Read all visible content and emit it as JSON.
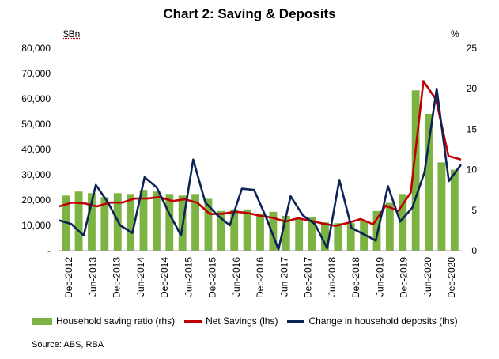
{
  "title": "Chart 2: Saving & Deposits",
  "source": "Source: ABS, RBA",
  "colors": {
    "saving_ratio": "#7cb342",
    "net_savings": "#c00000",
    "deposits": "#0d2356"
  },
  "chart_data": {
    "type": "bar",
    "title": "Chart 2: Saving & Deposits",
    "left_unit": "$Bn",
    "right_unit": "%",
    "ylim_left": [
      0,
      80000
    ],
    "ylim_right": [
      0,
      25
    ],
    "left_tick_labels": [
      "-",
      "10,000",
      "20,000",
      "30,000",
      "40,000",
      "50,000",
      "60,000",
      "70,000",
      "80,000"
    ],
    "right_tick_labels": [
      "0",
      "5",
      "10",
      "15",
      "20",
      "25"
    ],
    "x_tick_labels": [
      "Dec-2012",
      "Jun-2013",
      "Dec-2013",
      "Jun-2014",
      "Dec-2014",
      "Jun-2015",
      "Dec-2015",
      "Jun-2016",
      "Dec-2016",
      "Jun-2017",
      "Dec-2017",
      "Jun-2018",
      "Dec-2018",
      "Jun-2019",
      "Dec-2019",
      "Jun-2020",
      "Dec-2020"
    ],
    "legend_position": "bottom",
    "series": [
      {
        "name": "Household saving ratio (rhs)",
        "type": "bar",
        "axis": "right",
        "values": [
          6.8,
          7.3,
          7.1,
          6.6,
          7.1,
          7.0,
          7.5,
          7.3,
          7.0,
          6.8,
          7.0,
          6.4,
          4.9,
          5.1,
          5.1,
          4.6,
          4.8,
          4.3,
          3.9,
          4.1,
          3.5,
          3.4,
          3.4,
          3.7,
          4.9,
          5.9,
          7.0,
          19.8,
          16.9,
          10.9,
          10.0
        ]
      },
      {
        "name": "Net Savings (lhs)",
        "type": "line",
        "axis": "left",
        "values": [
          17500,
          19000,
          18700,
          17500,
          19000,
          19000,
          20600,
          20600,
          21200,
          19600,
          20300,
          18900,
          14500,
          14600,
          15400,
          14900,
          13800,
          13000,
          11500,
          12800,
          11900,
          10700,
          9800,
          11000,
          12500,
          10400,
          17800,
          15700,
          23000,
          67000,
          59800,
          37400,
          36000
        ]
      },
      {
        "name": "Change in household deposits (lhs)",
        "type": "line",
        "axis": "left",
        "values": [
          12000,
          10500,
          6000,
          26000,
          19000,
          10000,
          7000,
          29000,
          25000,
          15000,
          6000,
          36000,
          19000,
          14000,
          10000,
          24500,
          24000,
          13000,
          500,
          21500,
          14000,
          10500,
          1000,
          28000,
          9000,
          6500,
          4000,
          25500,
          11500,
          17000,
          31000,
          64000,
          27500,
          34000
        ]
      }
    ]
  }
}
